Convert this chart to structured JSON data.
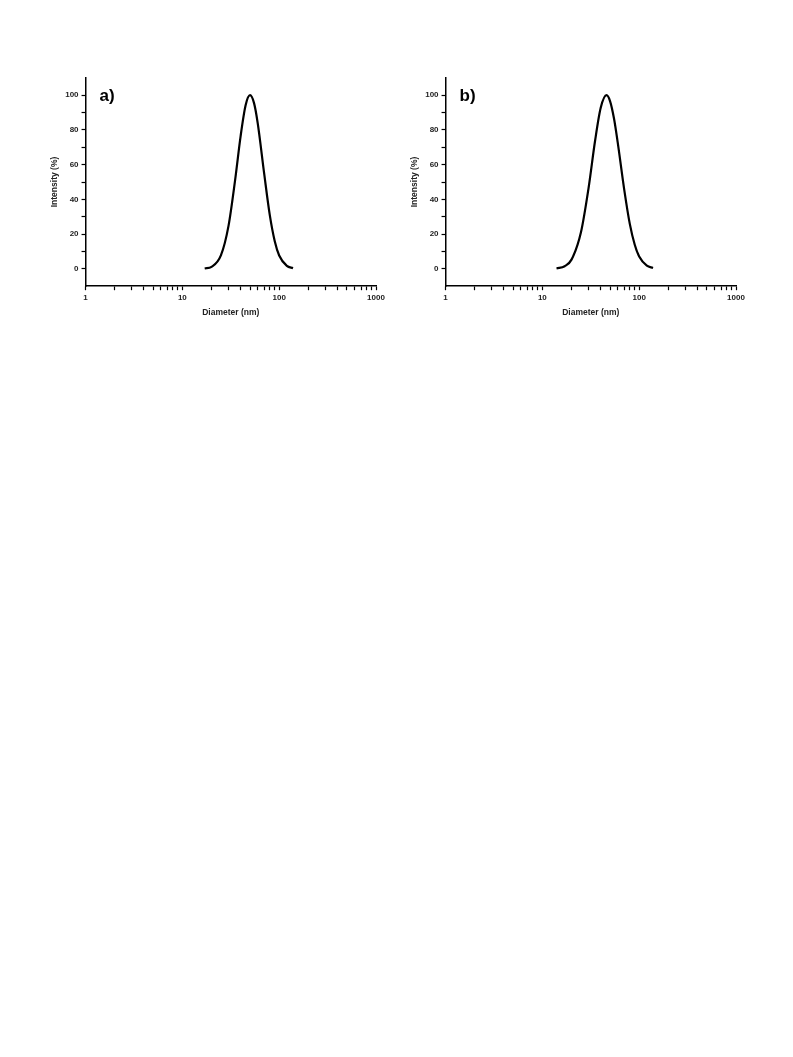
{
  "chart_data": [
    {
      "type": "line",
      "title": "a)",
      "xlabel": "Diameter (nm)",
      "ylabel": "Intensity (%)",
      "log": "x",
      "x": [
        17,
        20,
        25,
        30,
        35,
        40,
        45,
        50,
        55,
        60,
        70,
        80,
        90,
        100,
        120,
        139
      ],
      "series": [
        {
          "color": "#000000",
          "values": [
            0.2,
            1.1,
            7.7,
            24.9,
            50.8,
            76.6,
            94.2,
            100,
            95.4,
            83.9,
            54.8,
            30.9,
            15.9,
            7.7,
            1.7,
            0.4
          ]
        }
      ],
      "xlim": [
        1,
        1000
      ],
      "ylim": [
        -10,
        110
      ],
      "xticks": [
        1,
        {
          "value": 2,
          "label": null
        },
        {
          "value": 3,
          "label": null
        },
        {
          "value": 4,
          "label": null
        },
        {
          "value": 5,
          "label": null
        },
        {
          "value": 6,
          "label": null
        },
        {
          "value": 7,
          "label": null
        },
        {
          "value": 8,
          "label": null
        },
        {
          "value": 9,
          "label": null
        },
        10,
        {
          "value": 20,
          "label": null
        },
        {
          "value": 30,
          "label": null
        },
        {
          "value": 40,
          "label": null
        },
        {
          "value": 50,
          "label": null
        },
        {
          "value": 60,
          "label": null
        },
        {
          "value": 70,
          "label": null
        },
        {
          "value": 80,
          "label": null
        },
        {
          "value": 90,
          "label": null
        },
        100,
        {
          "value": 200,
          "label": null
        },
        {
          "value": 300,
          "label": null
        },
        {
          "value": 400,
          "label": null
        },
        {
          "value": 500,
          "label": null
        },
        {
          "value": 600,
          "label": null
        },
        {
          "value": 700,
          "label": null
        },
        {
          "value": 800,
          "label": null
        },
        {
          "value": 900,
          "label": null
        },
        1000
      ],
      "yticks": [
        0,
        {
          "value": 10,
          "label": null
        },
        20,
        {
          "value": 30,
          "label": null
        },
        40,
        {
          "value": 50,
          "label": null
        },
        60,
        {
          "value": 70,
          "label": null
        },
        80,
        {
          "value": 90,
          "label": null
        },
        100
      ],
      "marker": "none"
    },
    {
      "type": "line",
      "title": "b)",
      "xlabel": "Diameter (nm)",
      "ylabel": "Intensity (%)",
      "log": "x",
      "x": [
        14,
        17,
        20,
        25,
        30,
        35,
        40,
        46,
        50,
        55,
        60,
        70,
        80,
        90,
        100,
        120,
        139
      ],
      "series": [
        {
          "color": "#000000",
          "values": [
            0.2,
            1.5,
            5.3,
            20.9,
            46.5,
            73.6,
            92.6,
            100,
            96.6,
            86.4,
            72.8,
            45.8,
            25.9,
            13.9,
            7.1,
            1.8,
            0.5
          ]
        }
      ],
      "xlim": [
        1,
        1000
      ],
      "ylim": [
        -10,
        110
      ],
      "xticks": [
        1,
        {
          "value": 2,
          "label": null
        },
        {
          "value": 3,
          "label": null
        },
        {
          "value": 4,
          "label": null
        },
        {
          "value": 5,
          "label": null
        },
        {
          "value": 6,
          "label": null
        },
        {
          "value": 7,
          "label": null
        },
        {
          "value": 8,
          "label": null
        },
        {
          "value": 9,
          "label": null
        },
        10,
        {
          "value": 20,
          "label": null
        },
        {
          "value": 30,
          "label": null
        },
        {
          "value": 40,
          "label": null
        },
        {
          "value": 50,
          "label": null
        },
        {
          "value": 60,
          "label": null
        },
        {
          "value": 70,
          "label": null
        },
        {
          "value": 80,
          "label": null
        },
        {
          "value": 90,
          "label": null
        },
        100,
        {
          "value": 200,
          "label": null
        },
        {
          "value": 300,
          "label": null
        },
        {
          "value": 400,
          "label": null
        },
        {
          "value": 500,
          "label": null
        },
        {
          "value": 600,
          "label": null
        },
        {
          "value": 700,
          "label": null
        },
        {
          "value": 800,
          "label": null
        },
        {
          "value": 900,
          "label": null
        },
        1000
      ],
      "yticks": [
        0,
        {
          "value": 10,
          "label": null
        },
        20,
        {
          "value": 30,
          "label": null
        },
        40,
        {
          "value": 50,
          "label": null
        },
        60,
        {
          "value": 70,
          "label": null
        },
        80,
        {
          "value": 90,
          "label": null
        },
        100
      ],
      "marker": "none"
    }
  ]
}
